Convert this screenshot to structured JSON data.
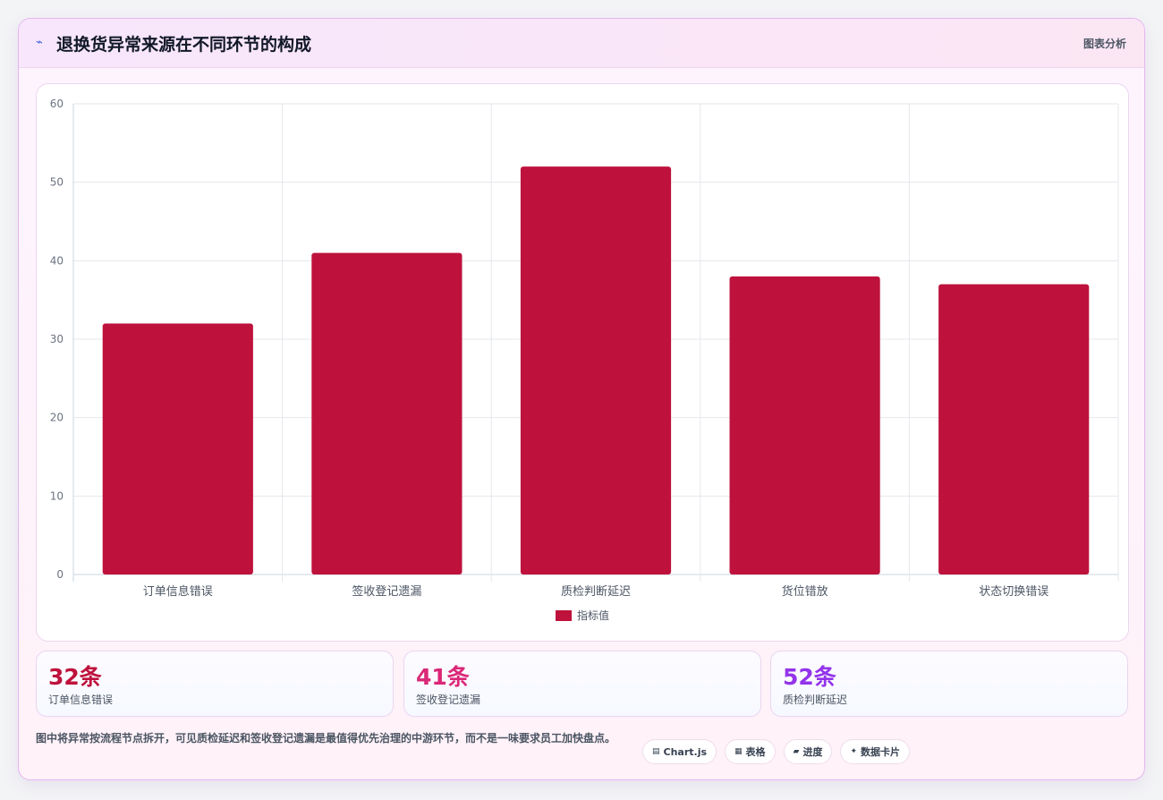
{
  "header": {
    "icon": "trend-icon",
    "title": "退换货异常来源在不同环节的构成",
    "tag": "图表分析"
  },
  "chart_data": {
    "type": "bar",
    "categories": [
      "订单信息错误",
      "签收登记遗漏",
      "质检判断延迟",
      "货位错放",
      "状态切换错误"
    ],
    "series": [
      {
        "name": "指标值",
        "values": [
          32,
          41,
          52,
          38,
          37
        ],
        "color": "#be123c"
      }
    ],
    "ylim": [
      0,
      60
    ],
    "yticks": [
      0,
      10,
      20,
      30,
      40,
      50,
      60
    ],
    "grid": true,
    "legend": "bottom-center"
  },
  "stats": [
    {
      "value": "32条",
      "label": "订单信息错误",
      "color": "#be123c"
    },
    {
      "value": "41条",
      "label": "签收登记遗漏",
      "color": "#db2777"
    },
    {
      "value": "52条",
      "label": "质检判断延迟",
      "color": "#9333ea"
    }
  ],
  "note": "图中将异常按流程节点拆开，可见质检延迟和签收登记遗漏是最值得优先治理的中游环节，而不是一味要求员工加快盘点。",
  "chips": [
    {
      "icon": "chart-icon",
      "glyph": "▤",
      "label": "Chart.js"
    },
    {
      "icon": "table-icon",
      "glyph": "▦",
      "label": "表格"
    },
    {
      "icon": "progress-icon",
      "glyph": "▰",
      "label": "进度"
    },
    {
      "icon": "sparkle-icon",
      "glyph": "✦",
      "label": "数据卡片"
    }
  ]
}
